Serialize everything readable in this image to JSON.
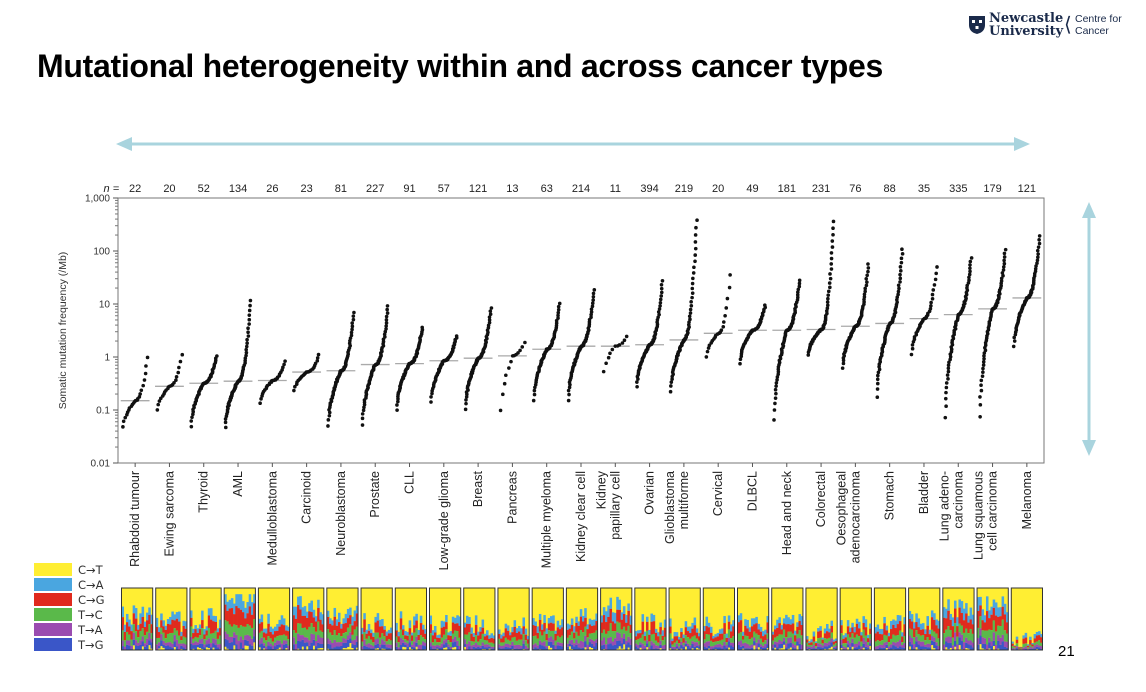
{
  "header": {
    "logo_line1": "Newcastle",
    "logo_line2": "University",
    "logo_centre_line1": "Centre for",
    "logo_centre_line2": "Cancer",
    "title": "Mutational heterogeneity within and across cancer types"
  },
  "page_number": "21",
  "chart_data": [
    {
      "type": "scatter",
      "title": "",
      "xlabel": "",
      "ylabel": "Somatic mutation frequency (/Mb)",
      "y_scale": "log",
      "ylim": [
        0.01,
        1000
      ],
      "y_ticks": [
        "0.01",
        "0.1",
        "1",
        "10",
        "100",
        "1,000"
      ],
      "n_prefix": "n =",
      "categories": [
        "Rhabdoid tumour",
        "Ewing sarcoma",
        "Thyroid",
        "AML",
        "Medulloblastoma",
        "Carcinoid",
        "Neuroblastoma",
        "Prostate",
        "CLL",
        "Low-grade glioma",
        "Breast",
        "Pancreas",
        "Multiple myeloma",
        "Kidney clear cell",
        "Kidney papillary cell",
        "Ovarian",
        "Glioblastoma multiforme",
        "Cervical",
        "DLBCL",
        "Head and neck",
        "Colorectal",
        "Oesophageal adenocarcinoma",
        "Stomach",
        "Bladder",
        "Lung adenocarcinoma",
        "Lung squamous cell carcinoma",
        "Melanoma"
      ],
      "n": [
        22,
        20,
        52,
        134,
        26,
        23,
        81,
        227,
        91,
        57,
        121,
        13,
        63,
        214,
        11,
        394,
        219,
        20,
        49,
        181,
        231,
        76,
        88,
        35,
        335,
        179,
        121
      ],
      "medians": [
        0.15,
        0.28,
        0.32,
        0.35,
        0.36,
        0.52,
        0.55,
        0.72,
        0.75,
        0.85,
        0.95,
        1.05,
        1.4,
        1.6,
        1.6,
        1.7,
        2.1,
        2.8,
        3.2,
        3.2,
        3.3,
        3.8,
        4.3,
        5.3,
        6.3,
        8.1,
        13
      ],
      "min": [
        0.033,
        0.07,
        0.033,
        0.033,
        0.1,
        0.18,
        0.033,
        0.033,
        0.07,
        0.1,
        0.07,
        0.033,
        0.1,
        0.1,
        0.3,
        0.2,
        0.15,
        0.7,
        0.55,
        0.033,
        0.9,
        0.45,
        0.1,
        0.75,
        0.033,
        0.033,
        1.1
      ],
      "max": [
        1.2,
        1.3,
        1.1,
        13,
        0.9,
        1.2,
        7.5,
        10,
        3.8,
        2.6,
        9,
        2.1,
        11,
        20,
        2.7,
        30,
        450,
        48,
        10,
        30,
        420,
        62,
        120,
        58,
        80,
        115,
        210
      ]
    },
    {
      "type": "area",
      "title": "",
      "legend_labels": [
        "C→T",
        "C→A",
        "C→G",
        "T→C",
        "T→A",
        "T→G"
      ],
      "colors": [
        "#ffee33",
        "#4aa6e0",
        "#e02a1e",
        "#5ab94a",
        "#9a4cb0",
        "#3a56c8"
      ],
      "typical_fraction_c_to_t": [
        0.45,
        0.55,
        0.5,
        0.15,
        0.5,
        0.3,
        0.45,
        0.55,
        0.55,
        0.6,
        0.6,
        0.65,
        0.55,
        0.45,
        0.3,
        0.55,
        0.65,
        0.6,
        0.55,
        0.55,
        0.7,
        0.6,
        0.6,
        0.5,
        0.3,
        0.3,
        0.85
      ]
    }
  ],
  "colors": {
    "arrow": "#a9d4de",
    "median_line": "#aaaaaa",
    "dot": "#111111"
  }
}
